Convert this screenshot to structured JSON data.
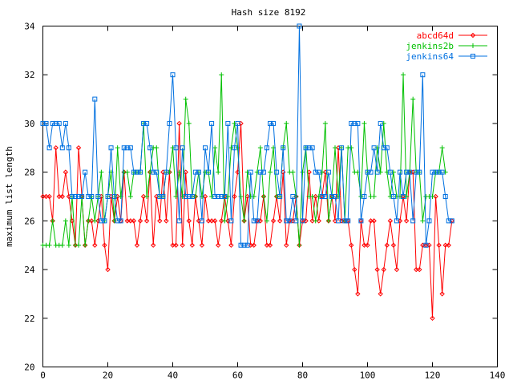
{
  "chart_data": {
    "type": "line",
    "title": "Hash size 8192",
    "xlabel": "",
    "ylabel": "maximum list length",
    "xlim": [
      0,
      140
    ],
    "ylim": [
      20,
      34
    ],
    "xticks": [
      0,
      20,
      40,
      60,
      80,
      100,
      120,
      140
    ],
    "yticks": [
      20,
      22,
      24,
      26,
      28,
      30,
      32,
      34
    ],
    "grid": false,
    "legend_position": "top-right",
    "series": [
      {
        "name": "abcd64d",
        "color": "#ff0000",
        "marker": "diamond",
        "values": [
          27,
          27,
          27,
          26,
          29,
          27,
          27,
          28,
          27,
          26,
          25,
          29,
          27,
          25,
          26,
          26,
          25,
          26,
          27,
          25,
          24,
          27,
          26,
          27,
          26,
          28,
          26,
          26,
          26,
          25,
          26,
          27,
          26,
          28,
          25,
          27,
          26,
          28,
          26,
          28,
          25,
          25,
          30,
          25,
          28,
          26,
          25,
          27,
          26,
          25,
          27,
          26,
          26,
          26,
          25,
          26,
          27,
          26,
          25,
          27,
          28,
          30,
          26,
          27,
          25,
          25,
          26,
          26,
          27,
          25,
          25,
          26,
          27,
          26,
          28,
          25,
          26,
          26,
          27,
          25,
          26,
          26,
          28,
          26,
          27,
          26,
          27,
          28,
          26,
          27,
          26,
          29,
          26,
          26,
          26,
          25,
          24,
          23,
          26,
          25,
          25,
          26,
          26,
          24,
          23,
          24,
          25,
          26,
          25,
          24,
          26,
          27,
          26,
          28,
          28,
          24,
          24,
          25,
          25,
          25,
          22,
          27,
          25,
          23,
          25,
          25,
          26
        ]
      },
      {
        "name": "jenkins2b",
        "color": "#00c000",
        "marker": "plus",
        "values": [
          25,
          25,
          25,
          26,
          25,
          25,
          25,
          26,
          25,
          27,
          25,
          25,
          27,
          25,
          26,
          27,
          26,
          27,
          28,
          26,
          27,
          28,
          26,
          29,
          27,
          28,
          28,
          27,
          28,
          28,
          28,
          30,
          27,
          28,
          29,
          29,
          27,
          27,
          28,
          28,
          29,
          27,
          28,
          27,
          31,
          30,
          27,
          27,
          28,
          27,
          28,
          28,
          27,
          29,
          28,
          32,
          26,
          27,
          29,
          30,
          29,
          27,
          26,
          28,
          27,
          27,
          28,
          29,
          27,
          26,
          28,
          29,
          27,
          27,
          29,
          30,
          28,
          28,
          27,
          25,
          28,
          29,
          27,
          27,
          26,
          27,
          28,
          30,
          26,
          27,
          29,
          27,
          29,
          26,
          29,
          29,
          28,
          28,
          27,
          30,
          28,
          27,
          27,
          29,
          28,
          30,
          28,
          27,
          28,
          27,
          27,
          32,
          27,
          28,
          31,
          28,
          28,
          26,
          27,
          27,
          27,
          28,
          28,
          29,
          28
        ]
      },
      {
        "name": "jenkins64",
        "color": "#0070e0",
        "marker": "square",
        "values": [
          30,
          30,
          29,
          30,
          30,
          30,
          29,
          30,
          29,
          27,
          27,
          27,
          27,
          28,
          27,
          27,
          31,
          27,
          26,
          26,
          27,
          29,
          27,
          26,
          26,
          29,
          29,
          29,
          28,
          28,
          28,
          30,
          30,
          29,
          28,
          28,
          27,
          27,
          28,
          30,
          32,
          29,
          26,
          29,
          27,
          27,
          27,
          28,
          28,
          26,
          29,
          28,
          30,
          27,
          27,
          27,
          27,
          30,
          26,
          29,
          30,
          25,
          25,
          25,
          28,
          26,
          26,
          28,
          28,
          29,
          30,
          30,
          28,
          27,
          29,
          26,
          26,
          27,
          26,
          34,
          26,
          29,
          29,
          29,
          28,
          28,
          27,
          27,
          28,
          27,
          27,
          26,
          29,
          26,
          26,
          30,
          30,
          30,
          26,
          27,
          28,
          28,
          29,
          28,
          30,
          29,
          29,
          28,
          27,
          26,
          28,
          27,
          28,
          28,
          26,
          28,
          28,
          32,
          25,
          26,
          28,
          28,
          28,
          28,
          27,
          26,
          26
        ]
      }
    ]
  }
}
